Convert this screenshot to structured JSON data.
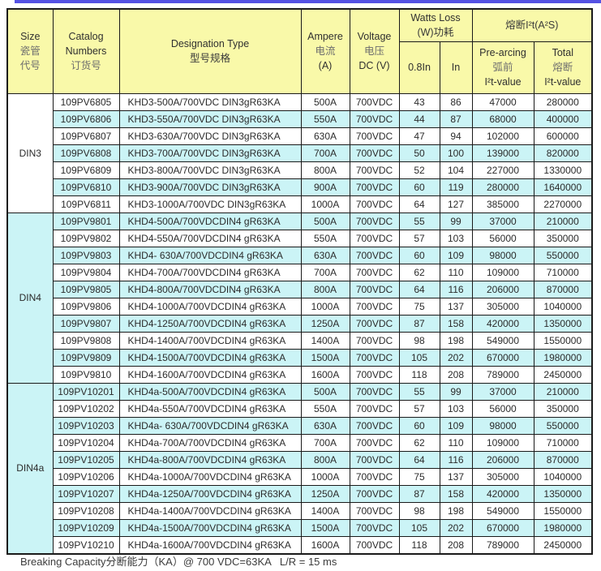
{
  "colors": {
    "accent_bar": "#5552E3",
    "header_bg": "#F9F9A9",
    "stripe_bg": "#CBF4F6",
    "border": "#1a1a1a"
  },
  "table": {
    "header": {
      "size": {
        "en": "Size",
        "zh1": "瓷管",
        "zh2": "代号"
      },
      "catalog": {
        "en1": "Catalog",
        "en2": "Numbers",
        "zh": "订货号"
      },
      "designation": {
        "en": "Designation Type",
        "zh": "型号规格"
      },
      "ampere": {
        "en": "Ampere",
        "zh": "电流",
        "unit": "(A)"
      },
      "voltage": {
        "en": "Voltage",
        "zh": "电压",
        "unit": "DC (V)"
      },
      "watts_loss": {
        "en": "Watts Loss",
        "zh": "(W)功耗"
      },
      "i2t": {
        "title": "熔断I²t(A²S)"
      },
      "sub_08in": "0.8In",
      "sub_in": "In",
      "prearcing": {
        "en": "Pre-arcing",
        "zh": "弧前",
        "value": "I²t-value"
      },
      "total": {
        "en": "Total",
        "zh": "熔断",
        "value": "I²t-value"
      }
    },
    "groups": [
      {
        "size": "DIN3",
        "rows": [
          {
            "catalog": "109PV6805",
            "designation": "KHD3-500A/700VDC DIN3gR63KA",
            "ampere": "500A",
            "voltage": "700VDC",
            "watts_08in": "43",
            "watts_in": "86",
            "prearcing_i2t": "47000",
            "total_i2t": "280000"
          },
          {
            "catalog": "109PV6806",
            "designation": "KHD3-550A/700VDC DIN3gR63KA",
            "ampere": "550A",
            "voltage": "700VDC",
            "watts_08in": "44",
            "watts_in": "87",
            "prearcing_i2t": "68000",
            "total_i2t": "400000"
          },
          {
            "catalog": "109PV6807",
            "designation": "KHD3-630A/700VDC DIN3gR63KA",
            "ampere": "630A",
            "voltage": "700VDC",
            "watts_08in": "47",
            "watts_in": "94",
            "prearcing_i2t": "102000",
            "total_i2t": "600000"
          },
          {
            "catalog": "109PV6808",
            "designation": "KHD3-700A/700VDC DIN3gR63KA",
            "ampere": "700A",
            "voltage": "700VDC",
            "watts_08in": "50",
            "watts_in": "100",
            "prearcing_i2t": "139000",
            "total_i2t": "820000"
          },
          {
            "catalog": "109PV6809",
            "designation": "KHD3-800A/700VDC DIN3gR63KA",
            "ampere": "800A",
            "voltage": "700VDC",
            "watts_08in": "52",
            "watts_in": "104",
            "prearcing_i2t": "227000",
            "total_i2t": "1330000"
          },
          {
            "catalog": "109PV6810",
            "designation": "KHD3-900A/700VDC DIN3gR63KA",
            "ampere": "900A",
            "voltage": "700VDC",
            "watts_08in": "60",
            "watts_in": "119",
            "prearcing_i2t": "280000",
            "total_i2t": "1640000"
          },
          {
            "catalog": "109PV6811",
            "designation": "KHD3-1000A/700VDC DIN3gR63KA",
            "ampere": "1000A",
            "voltage": "700VDC",
            "watts_08in": "64",
            "watts_in": "127",
            "prearcing_i2t": "385000",
            "total_i2t": "2270000"
          }
        ]
      },
      {
        "size": "DIN4",
        "rows": [
          {
            "catalog": "109PV9801",
            "designation": "KHD4-500A/700VDCDIN4 gR63KA",
            "ampere": "500A",
            "voltage": "700VDC",
            "watts_08in": "55",
            "watts_in": "99",
            "prearcing_i2t": "37000",
            "total_i2t": "210000"
          },
          {
            "catalog": "109PV9802",
            "designation": "KHD4-550A/700VDCDIN4 gR63KA",
            "ampere": "550A",
            "voltage": "700VDC",
            "watts_08in": "57",
            "watts_in": "103",
            "prearcing_i2t": "56000",
            "total_i2t": "350000"
          },
          {
            "catalog": "109PV9803",
            "designation": "KHD4- 630A/700VDCDIN4 gR63KA",
            "ampere": "630A",
            "voltage": "700VDC",
            "watts_08in": "60",
            "watts_in": "109",
            "prearcing_i2t": "98000",
            "total_i2t": "550000"
          },
          {
            "catalog": "109PV9804",
            "designation": "KHD4-700A/700VDCDIN4 gR63KA",
            "ampere": "700A",
            "voltage": "700VDC",
            "watts_08in": "62",
            "watts_in": "110",
            "prearcing_i2t": "109000",
            "total_i2t": "710000"
          },
          {
            "catalog": "109PV9805",
            "designation": "KHD4-800A/700VDCDIN4 gR63KA",
            "ampere": "800A",
            "voltage": "700VDC",
            "watts_08in": "64",
            "watts_in": "116",
            "prearcing_i2t": "206000",
            "total_i2t": "870000"
          },
          {
            "catalog": "109PV9806",
            "designation": "KHD4-1000A/700VDCDIN4 gR63KA",
            "ampere": "1000A",
            "voltage": "700VDC",
            "watts_08in": "75",
            "watts_in": "137",
            "prearcing_i2t": "305000",
            "total_i2t": "1040000"
          },
          {
            "catalog": "109PV9807",
            "designation": "KHD4-1250A/700VDCDIN4 gR63KA",
            "ampere": "1250A",
            "voltage": "700VDC",
            "watts_08in": "87",
            "watts_in": "158",
            "prearcing_i2t": "420000",
            "total_i2t": "1350000"
          },
          {
            "catalog": "109PV9808",
            "designation": "KHD4-1400A/700VDCDIN4 gR63KA",
            "ampere": "1400A",
            "voltage": "700VDC",
            "watts_08in": "98",
            "watts_in": "198",
            "prearcing_i2t": "549000",
            "total_i2t": "1550000"
          },
          {
            "catalog": "109PV9809",
            "designation": "KHD4-1500A/700VDCDIN4 gR63KA",
            "ampere": "1500A",
            "voltage": "700VDC",
            "watts_08in": "105",
            "watts_in": "202",
            "prearcing_i2t": "670000",
            "total_i2t": "1980000"
          },
          {
            "catalog": "109PV9810",
            "designation": "KHD4-1600A/700VDCDIN4 gR63KA",
            "ampere": "1600A",
            "voltage": "700VDC",
            "watts_08in": "118",
            "watts_in": "208",
            "prearcing_i2t": "789000",
            "total_i2t": "2450000"
          }
        ]
      },
      {
        "size": "DIN4a",
        "rows": [
          {
            "catalog": "109PV10201",
            "designation": "KHD4a-500A/700VDCDIN4 gR63KA",
            "ampere": "500A",
            "voltage": "700VDC",
            "watts_08in": "55",
            "watts_in": "99",
            "prearcing_i2t": "37000",
            "total_i2t": "210000"
          },
          {
            "catalog": "109PV10202",
            "designation": "KHD4a-550A/700VDCDIN4 gR63KA",
            "ampere": "550A",
            "voltage": "700VDC",
            "watts_08in": "57",
            "watts_in": "103",
            "prearcing_i2t": "56000",
            "total_i2t": "350000"
          },
          {
            "catalog": "109PV10203",
            "designation": "KHD4a- 630A/700VDCDIN4 gR63KA",
            "ampere": "630A",
            "voltage": "700VDC",
            "watts_08in": "60",
            "watts_in": "109",
            "prearcing_i2t": "98000",
            "total_i2t": "550000"
          },
          {
            "catalog": "109PV10204",
            "designation": "KHD4a-700A/700VDCDIN4 gR63KA",
            "ampere": "700A",
            "voltage": "700VDC",
            "watts_08in": "62",
            "watts_in": "110",
            "prearcing_i2t": "109000",
            "total_i2t": "710000"
          },
          {
            "catalog": "109PV10205",
            "designation": "KHD4a-800A/700VDCDIN4 gR63KA",
            "ampere": "800A",
            "voltage": "700VDC",
            "watts_08in": "64",
            "watts_in": "116",
            "prearcing_i2t": "206000",
            "total_i2t": "870000"
          },
          {
            "catalog": "109PV10206",
            "designation": "KHD4a-1000A/700VDCDIN4 gR63KA",
            "ampere": "1000A",
            "voltage": "700VDC",
            "watts_08in": "75",
            "watts_in": "137",
            "prearcing_i2t": "305000",
            "total_i2t": "1040000"
          },
          {
            "catalog": "109PV10207",
            "designation": "KHD4a-1250A/700VDCDIN4 gR63KA",
            "ampere": "1250A",
            "voltage": "700VDC",
            "watts_08in": "87",
            "watts_in": "158",
            "prearcing_i2t": "420000",
            "total_i2t": "1350000"
          },
          {
            "catalog": "109PV10208",
            "designation": "KHD4a-1400A/700VDCDIN4 gR63KA",
            "ampere": "1400A",
            "voltage": "700VDC",
            "watts_08in": "98",
            "watts_in": "198",
            "prearcing_i2t": "549000",
            "total_i2t": "1550000"
          },
          {
            "catalog": "109PV10209",
            "designation": "KHD4a-1500A/700VDCDIN4 gR63KA",
            "ampere": "1500A",
            "voltage": "700VDC",
            "watts_08in": "105",
            "watts_in": "202",
            "prearcing_i2t": "670000",
            "total_i2t": "1980000"
          },
          {
            "catalog": "109PV10210",
            "designation": "KHD4a-1600A/700VDCDIN4 gR63KA",
            "ampere": "1600A",
            "voltage": "700VDC",
            "watts_08in": "118",
            "watts_in": "208",
            "prearcing_i2t": "789000",
            "total_i2t": "2450000"
          }
        ]
      }
    ]
  },
  "footer": {
    "note": "Breaking Capacity分断能力（KA）@ 700 VDC=63KA   L/R = 15 ms"
  }
}
